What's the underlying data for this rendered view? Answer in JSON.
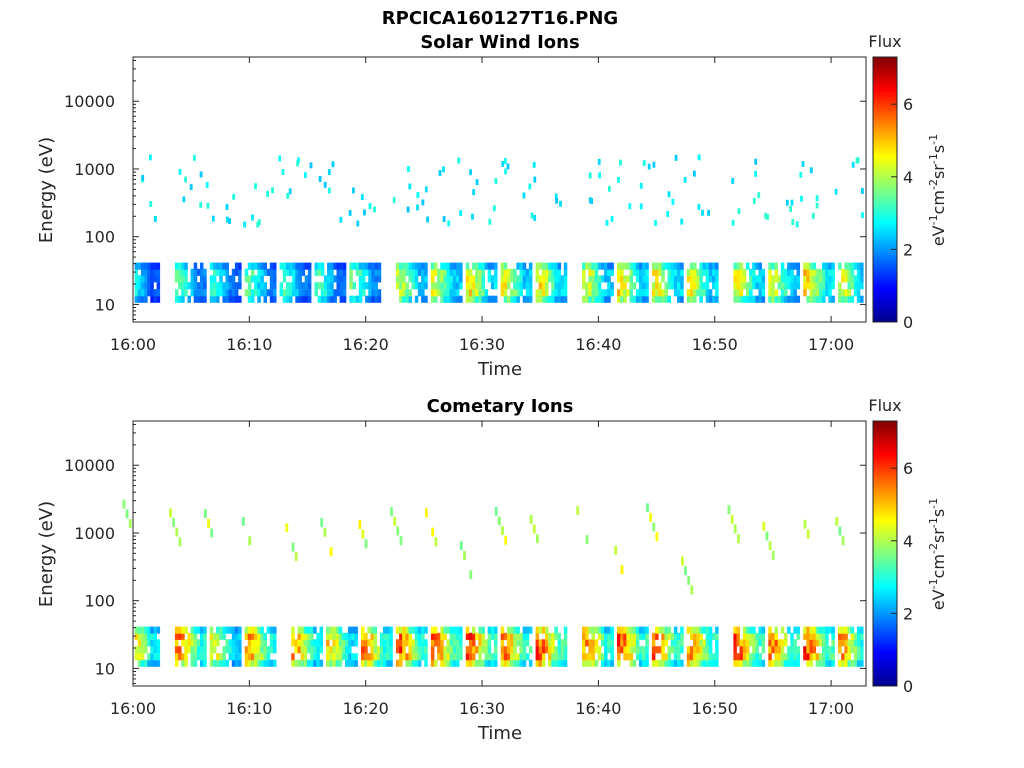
{
  "figure_title": "RPCICA160127T16.PNG",
  "chart_data": [
    {
      "type": "heatmap",
      "title": "Solar Wind Ions",
      "xlabel": "Time",
      "ylabel": "Energy (eV)",
      "xscale": "time",
      "xlim": [
        "16:00",
        "17:03"
      ],
      "xticks": [
        "16:00",
        "16:10",
        "16:20",
        "16:30",
        "16:40",
        "16:50",
        "17:00"
      ],
      "yscale": "log",
      "ylim": [
        5.5,
        45000
      ],
      "yticks": [
        "10",
        "100",
        "1000",
        "10000"
      ],
      "colorbar": {
        "label": "Flux",
        "unit": "eV-1cm-2sr-1s-1",
        "range": [
          0,
          7.3
        ],
        "ticks": [
          "0",
          "2",
          "4",
          "6"
        ],
        "colormap": "jet"
      },
      "pattern": {
        "band_low_eV": [
          12,
          40
        ],
        "bursts": [
          {
            "t": "16:00",
            "flux": 3.0
          },
          {
            "t": "16:04",
            "flux": 3.6
          },
          {
            "t": "16:07",
            "flux": 3.2
          },
          {
            "t": "16:10",
            "flux": 3.6
          },
          {
            "t": "16:13",
            "flux": 3.4
          },
          {
            "t": "16:16",
            "flux": 3.4
          },
          {
            "t": "16:19",
            "flux": 3.8
          },
          {
            "t": "16:23",
            "flux": 4.4
          },
          {
            "t": "16:26",
            "flux": 4.6
          },
          {
            "t": "16:29",
            "flux": 5.0
          },
          {
            "t": "16:32",
            "flux": 4.7
          },
          {
            "t": "16:35",
            "flux": 4.9
          },
          {
            "t": "16:39",
            "flux": 4.7
          },
          {
            "t": "16:42",
            "flux": 5.0
          },
          {
            "t": "16:45",
            "flux": 4.9
          },
          {
            "t": "16:48",
            "flux": 4.8
          },
          {
            "t": "16:52",
            "flux": 4.8
          },
          {
            "t": "16:55",
            "flux": 4.6
          },
          {
            "t": "16:58",
            "flux": 5.1
          },
          {
            "t": "17:01",
            "flux": 4.6
          }
        ],
        "scatter_high_eV": [
          150,
          1500
        ],
        "scatter_flux": 2.3
      }
    },
    {
      "type": "heatmap",
      "title": "Cometary Ions",
      "xlabel": "Time",
      "ylabel": "Energy (eV)",
      "xscale": "time",
      "xlim": [
        "16:00",
        "17:03"
      ],
      "xticks": [
        "16:00",
        "16:10",
        "16:20",
        "16:30",
        "16:40",
        "16:50",
        "17:00"
      ],
      "yscale": "log",
      "ylim": [
        5.5,
        45000
      ],
      "yticks": [
        "10",
        "100",
        "1000",
        "10000"
      ],
      "colorbar": {
        "label": "Flux",
        "unit": "eV-1cm-2sr-1s-1",
        "range": [
          0,
          7.3
        ],
        "ticks": [
          "0",
          "2",
          "4",
          "6"
        ],
        "colormap": "jet"
      },
      "pattern": {
        "band_low_eV": [
          12,
          40
        ],
        "bursts": [
          {
            "t": "16:00",
            "flux": 5.3
          },
          {
            "t": "16:04",
            "flux": 5.8
          },
          {
            "t": "16:07",
            "flux": 4.8
          },
          {
            "t": "16:10",
            "flux": 5.8
          },
          {
            "t": "16:14",
            "flux": 5.6
          },
          {
            "t": "16:17",
            "flux": 5.1
          },
          {
            "t": "16:20",
            "flux": 5.8
          },
          {
            "t": "16:23",
            "flux": 6.1
          },
          {
            "t": "16:26",
            "flux": 6.3
          },
          {
            "t": "16:29",
            "flux": 6.2
          },
          {
            "t": "16:32",
            "flux": 6.0
          },
          {
            "t": "16:35",
            "flux": 6.2
          },
          {
            "t": "16:39",
            "flux": 5.9
          },
          {
            "t": "16:42",
            "flux": 6.1
          },
          {
            "t": "16:45",
            "flux": 6.0
          },
          {
            "t": "16:48",
            "flux": 6.0
          },
          {
            "t": "16:52",
            "flux": 6.2
          },
          {
            "t": "16:55",
            "flux": 6.0
          },
          {
            "t": "16:58",
            "flux": 6.3
          },
          {
            "t": "17:01",
            "flux": 5.6
          }
        ],
        "plume_flux": 3.5,
        "plume_top_eV": [
          300,
          3000
        ]
      }
    }
  ]
}
